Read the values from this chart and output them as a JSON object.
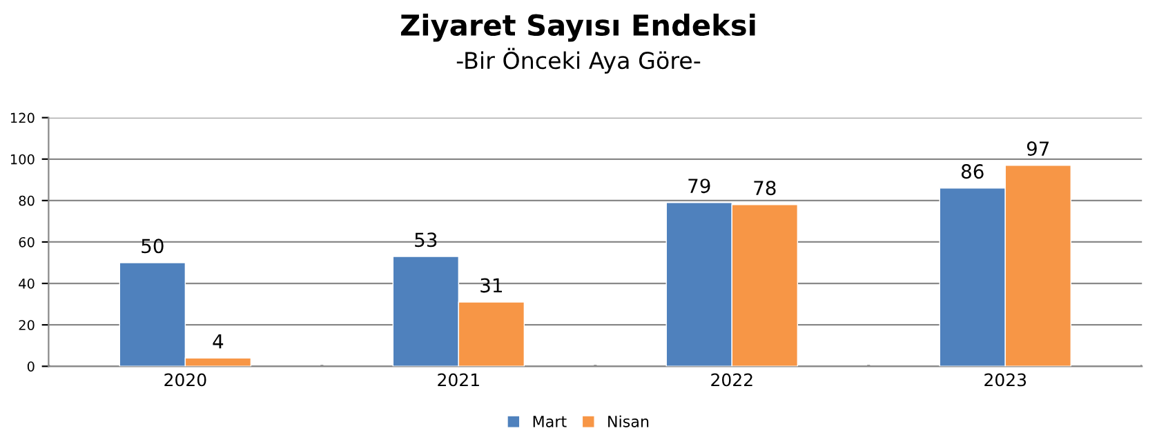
{
  "chart_data": {
    "type": "bar",
    "title": "Ziyaret Sayısı Endeksi",
    "subtitle": "-Bir Önceki Aya Göre-",
    "categories": [
      "2020",
      "2021",
      "2022",
      "2023"
    ],
    "series": [
      {
        "name": "Mart",
        "color": "#4f81bd",
        "values": [
          50,
          53,
          79,
          86
        ]
      },
      {
        "name": "Nisan",
        "color": "#f79646",
        "values": [
          4,
          31,
          78,
          97
        ]
      }
    ],
    "ylim": [
      0,
      120
    ],
    "yticks": [
      0,
      20,
      40,
      60,
      80,
      100,
      120
    ],
    "grid": "y",
    "legend": "bottom",
    "data_labels": true
  }
}
